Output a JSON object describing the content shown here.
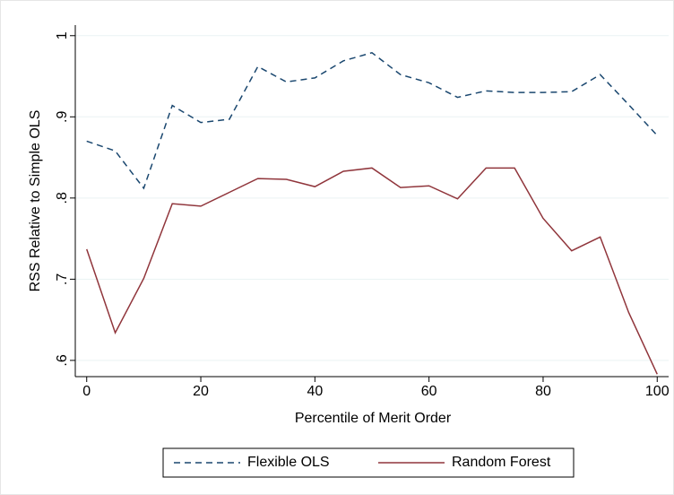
{
  "chart_data": {
    "type": "line",
    "x_label": "Percentile of Merit Order",
    "y_label": "RSS Relative to Simple OLS",
    "x": [
      0,
      5,
      10,
      15,
      20,
      25,
      30,
      35,
      40,
      45,
      50,
      55,
      60,
      65,
      70,
      75,
      80,
      85,
      90,
      95,
      100
    ],
    "series": [
      {
        "name": "Flexible OLS",
        "color": "#1a476f",
        "dash": true,
        "values": [
          0.87,
          0.858,
          0.812,
          0.914,
          0.893,
          0.897,
          0.962,
          0.943,
          0.948,
          0.969,
          0.979,
          0.952,
          0.942,
          0.924,
          0.932,
          0.93,
          0.93,
          0.931,
          0.952,
          0.915,
          0.877
        ]
      },
      {
        "name": "Random Forest",
        "color": "#90353b",
        "dash": false,
        "values": [
          0.737,
          0.634,
          0.701,
          0.793,
          0.79,
          0.807,
          0.824,
          0.823,
          0.814,
          0.833,
          0.837,
          0.813,
          0.815,
          0.799,
          0.837,
          0.837,
          0.775,
          0.735,
          0.752,
          0.659,
          0.583
        ]
      }
    ],
    "xlim": [
      -2,
      102
    ],
    "ylim": [
      0.58,
      1.013
    ],
    "xticks": [
      0,
      20,
      40,
      60,
      80,
      100
    ],
    "yticks": [
      {
        "value": 0.6,
        "label": ".6"
      },
      {
        "value": 0.7,
        "label": ".7"
      },
      {
        "value": 0.8,
        "label": ".8"
      },
      {
        "value": 0.9,
        "label": ".9"
      },
      1
    ],
    "grid": true,
    "legend": "bottom"
  }
}
